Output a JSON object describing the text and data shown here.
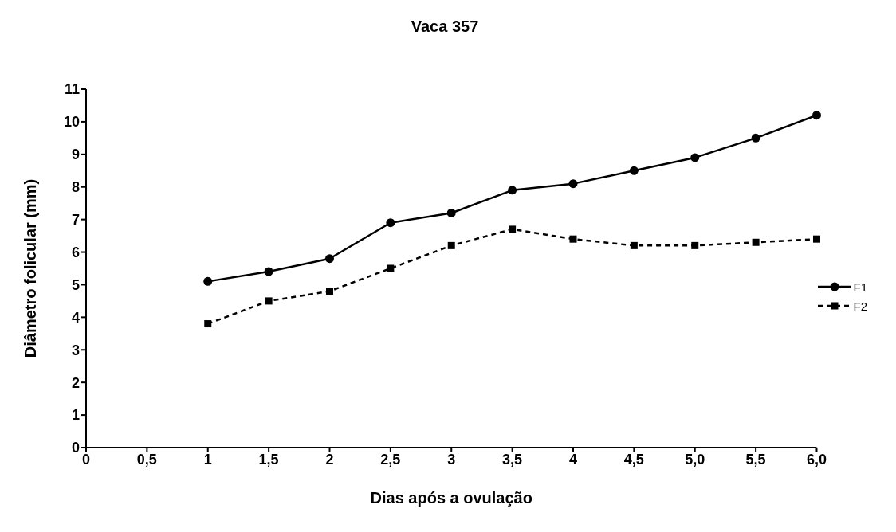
{
  "chart_data": {
    "type": "line",
    "title": "Vaca 357",
    "xlabel": "Dias após a ovulação",
    "ylabel": "Diâmetro folicular (mm)",
    "categories": [
      "0",
      "0,5",
      "1",
      "1,5",
      "2",
      "2,5",
      "3",
      "3,5",
      "4",
      "4,5",
      "5,0",
      "5,5",
      "6,0"
    ],
    "series": [
      {
        "name": "F1",
        "color": "#000000",
        "marker": "circle",
        "line_style": "solid",
        "values": [
          null,
          null,
          5.1,
          5.4,
          5.8,
          6.9,
          7.2,
          7.9,
          8.1,
          8.5,
          8.9,
          9.5,
          10.2
        ]
      },
      {
        "name": "F2",
        "color": "#000000",
        "marker": "square",
        "line_style": "dashed",
        "values": [
          null,
          null,
          3.8,
          4.5,
          4.8,
          5.5,
          6.2,
          6.7,
          6.4,
          6.2,
          6.2,
          6.3,
          6.4
        ]
      }
    ],
    "ylim": [
      0,
      11
    ],
    "yticks": [
      0,
      1,
      2,
      3,
      4,
      5,
      6,
      7,
      8,
      9,
      10,
      11
    ],
    "grid": false,
    "legend": "right"
  }
}
